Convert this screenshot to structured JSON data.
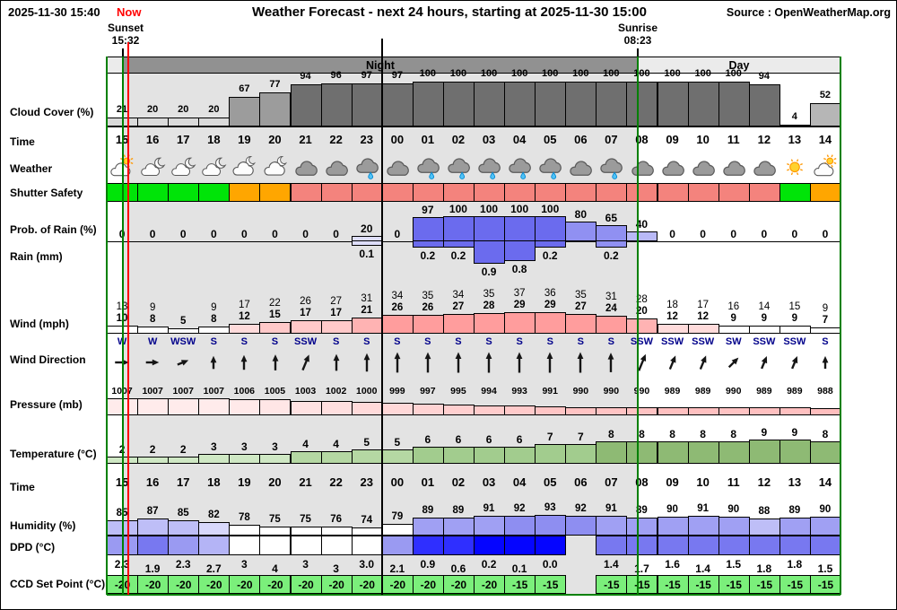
{
  "header": {
    "datetime": "2025-11-30 15:40",
    "now_label": "Now",
    "title": "Weather Forecast - next 24 hours, starting at 2025-11-30 15:00",
    "source": "Source : OpenWeatherMap.org",
    "sunset_label": "Sunset",
    "sunset_time": "15:32",
    "sunrise_label": "Sunrise",
    "sunrise_time": "08:23"
  },
  "bands": {
    "night": "Night",
    "day": "Day"
  },
  "row_labels": {
    "cloud": "Cloud Cover (%)",
    "time": "Time",
    "weather": "Weather",
    "shutter": "Shutter Safety",
    "prob": "Prob. of Rain (%)",
    "rain": "Rain (mm)",
    "wind": "Wind (mph)",
    "wind_dir": "Wind Direction",
    "pressure": "Pressure (mb)",
    "temperature": "Temperature (°C)",
    "time2": "Time",
    "humidity": "Humidity (%)",
    "dpd": "DPD (°C)",
    "ccd": "CCD Set Point (°C)"
  },
  "colors": {
    "now_line": "#ff0000",
    "sun_lines": "#008000",
    "midnight_line": "#000000",
    "night_band": "#919191",
    "day_band": "#ebebeb",
    "night_bg": "#e3e3e3",
    "shutter_green": "#00e408",
    "shutter_orange": "#ffa600",
    "shutter_red": "#f4837d",
    "ccd_green": "#7bef7b"
  },
  "chart_data": {
    "type": "table",
    "title": "Weather Forecast - next 24 hours, starting at 2025-11-30 15:00",
    "hours": [
      "15",
      "16",
      "17",
      "18",
      "19",
      "20",
      "21",
      "22",
      "23",
      "00",
      "01",
      "02",
      "03",
      "04",
      "05",
      "06",
      "07",
      "08",
      "09",
      "10",
      "11",
      "12",
      "13",
      "14"
    ],
    "cloud_cover_pct": [
      21,
      20,
      20,
      20,
      67,
      77,
      94,
      96,
      97,
      97,
      100,
      100,
      100,
      100,
      100,
      100,
      100,
      100,
      100,
      100,
      100,
      94,
      4,
      52
    ],
    "weather": [
      "partly-cloudy-day",
      "partly-cloudy-night",
      "partly-cloudy-night",
      "partly-cloudy-night",
      "mostly-cloudy-night",
      "mostly-cloudy-night",
      "cloudy",
      "cloudy",
      "rain",
      "cloudy",
      "rain",
      "rain",
      "rain",
      "rain",
      "rain",
      "cloudy",
      "rain",
      "cloudy",
      "cloudy",
      "cloudy",
      "cloudy",
      "cloudy",
      "sunny",
      "partly-cloudy-day"
    ],
    "shutter_safety": [
      "green",
      "green",
      "green",
      "green",
      "orange",
      "orange",
      "red",
      "red",
      "red",
      "red",
      "red",
      "red",
      "red",
      "red",
      "red",
      "red",
      "red",
      "red",
      "red",
      "red",
      "red",
      "red",
      "green",
      "orange"
    ],
    "prob_of_rain_pct": [
      0,
      0,
      0,
      0,
      0,
      0,
      0,
      0,
      20,
      0,
      97,
      100,
      100,
      100,
      100,
      80,
      65,
      40,
      0,
      0,
      0,
      0,
      0,
      0
    ],
    "rain_mm": [
      null,
      null,
      null,
      null,
      null,
      null,
      null,
      null,
      "0.1",
      null,
      "0.2",
      "0.2",
      "0.9",
      "0.8",
      "0.2",
      null,
      "0.2",
      null,
      null,
      null,
      null,
      null,
      null,
      null
    ],
    "wind_gust_mph": [
      13,
      9,
      null,
      9,
      17,
      22,
      26,
      27,
      31,
      34,
      35,
      34,
      35,
      37,
      36,
      35,
      31,
      28,
      18,
      17,
      16,
      14,
      15,
      9
    ],
    "wind_speed_mph": [
      10,
      8,
      5,
      8,
      12,
      15,
      17,
      17,
      21,
      26,
      26,
      27,
      28,
      29,
      29,
      27,
      24,
      20,
      12,
      12,
      9,
      9,
      9,
      7
    ],
    "wind_direction": [
      "W",
      "W",
      "WSW",
      "S",
      "S",
      "S",
      "SSW",
      "S",
      "S",
      "S",
      "S",
      "S",
      "S",
      "S",
      "S",
      "S",
      "S",
      "SSW",
      "SSW",
      "SSW",
      "SW",
      "SSW",
      "SSW",
      "S"
    ],
    "pressure_mb": [
      1007,
      1007,
      1007,
      1007,
      1006,
      1005,
      1003,
      1002,
      1000,
      999,
      997,
      995,
      994,
      993,
      991,
      990,
      990,
      990,
      989,
      989,
      990,
      989,
      989,
      988
    ],
    "temperature_c": [
      2,
      2,
      2,
      3,
      3,
      3,
      4,
      4,
      5,
      5,
      6,
      6,
      6,
      6,
      7,
      7,
      8,
      8,
      8,
      8,
      8,
      9,
      9,
      8
    ],
    "humidity_pct": [
      85,
      87,
      85,
      82,
      78,
      75,
      75,
      76,
      74,
      79,
      89,
      89,
      91,
      92,
      93,
      92,
      91,
      89,
      90,
      91,
      90,
      88,
      89,
      90
    ],
    "dpd_c": [
      "2.3",
      "1.9",
      "2.3",
      "2.7",
      "3",
      "4",
      "3",
      "3",
      "3.0",
      "2.1",
      "0.9",
      "0.6",
      "0.2",
      "0.1",
      "0.0",
      null,
      "1.4",
      "1.7",
      "1.6",
      "1.4",
      "1.5",
      "1.8",
      "1.8",
      "1.5"
    ],
    "ccd_set_point_c": [
      "-20",
      "-20",
      "-20",
      "-20",
      "-20",
      "-20",
      "-20",
      "-20",
      "-20",
      "-20",
      "-20",
      "-20",
      "-20",
      "-15",
      "-15",
      null,
      "-15",
      "-15",
      "-15",
      "-15",
      "-15",
      "-15",
      "-15",
      "-15"
    ]
  }
}
